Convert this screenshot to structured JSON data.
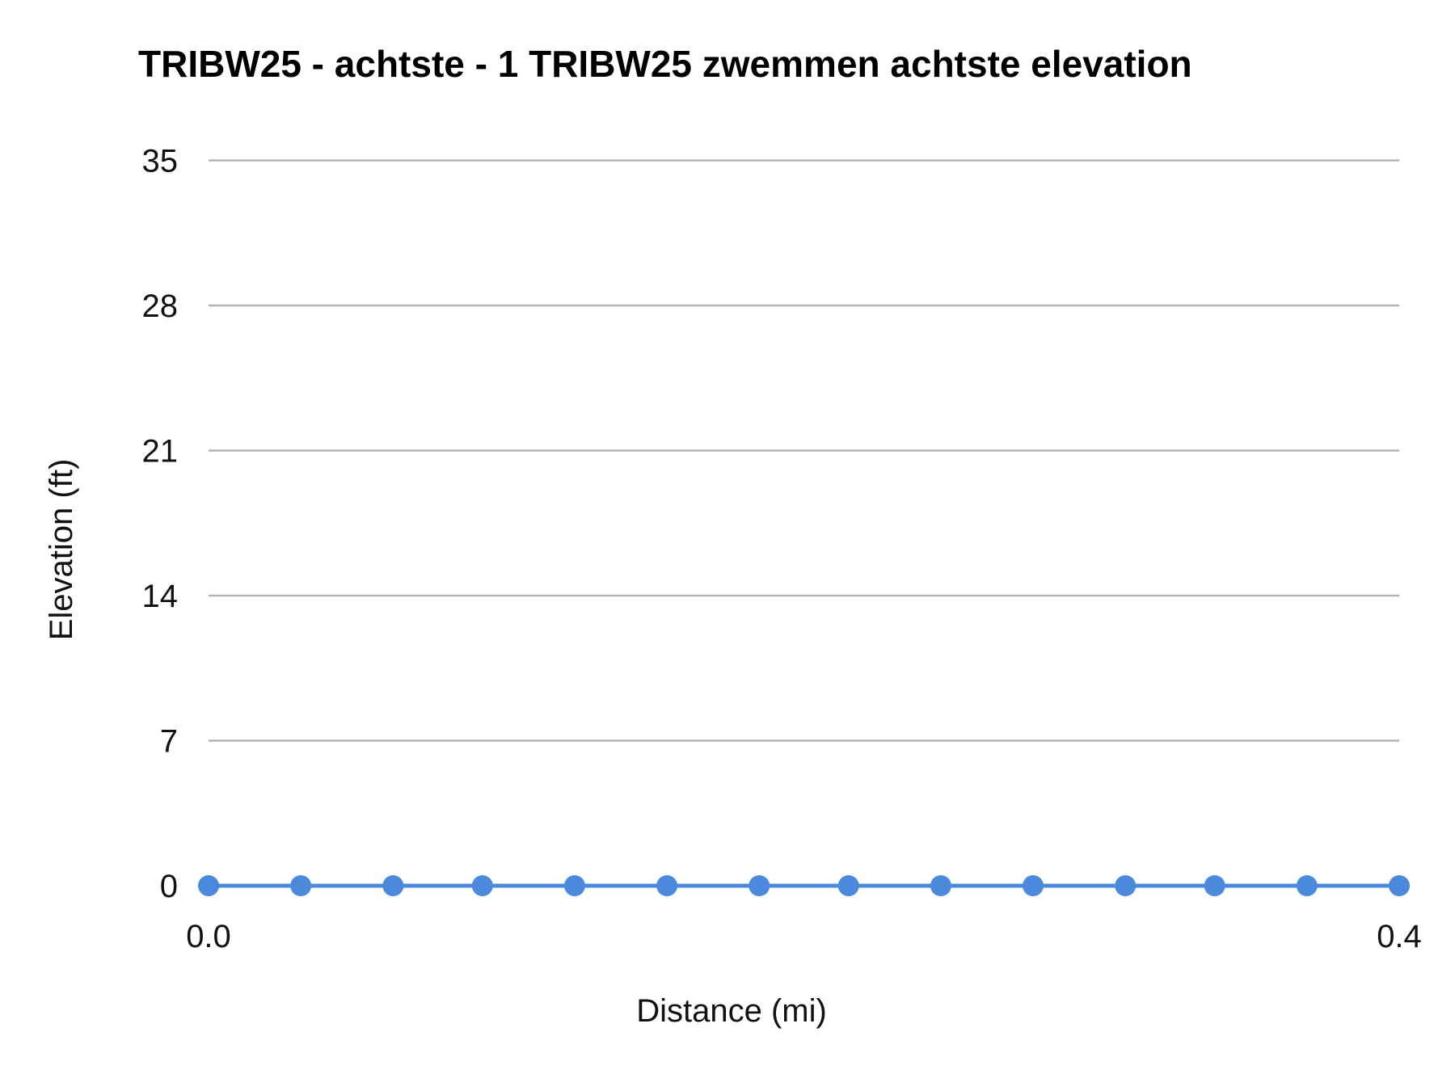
{
  "chart_data": {
    "type": "line",
    "title": "TRIBW25 - achtste - 1 TRIBW25 zwemmen achtste elevation",
    "xlabel": "Distance (mi)",
    "ylabel": "Elevation (ft)",
    "xlim": [
      0,
      0.4
    ],
    "ylim": [
      0,
      35
    ],
    "x_ticks": [
      "0.0",
      "0.4"
    ],
    "y_ticks": [
      "0",
      "7",
      "14",
      "21",
      "28",
      "35"
    ],
    "grid": true,
    "legend": "none",
    "series": [
      {
        "color": "#4a89dc",
        "markers": true,
        "x": [
          0,
          0.031,
          0.062,
          0.092,
          0.123,
          0.154,
          0.185,
          0.215,
          0.246,
          0.277,
          0.308,
          0.338,
          0.369,
          0.4
        ],
        "y": [
          0,
          0,
          0,
          0,
          0,
          0,
          0,
          0,
          0,
          0,
          0,
          0,
          0,
          0
        ]
      }
    ]
  }
}
